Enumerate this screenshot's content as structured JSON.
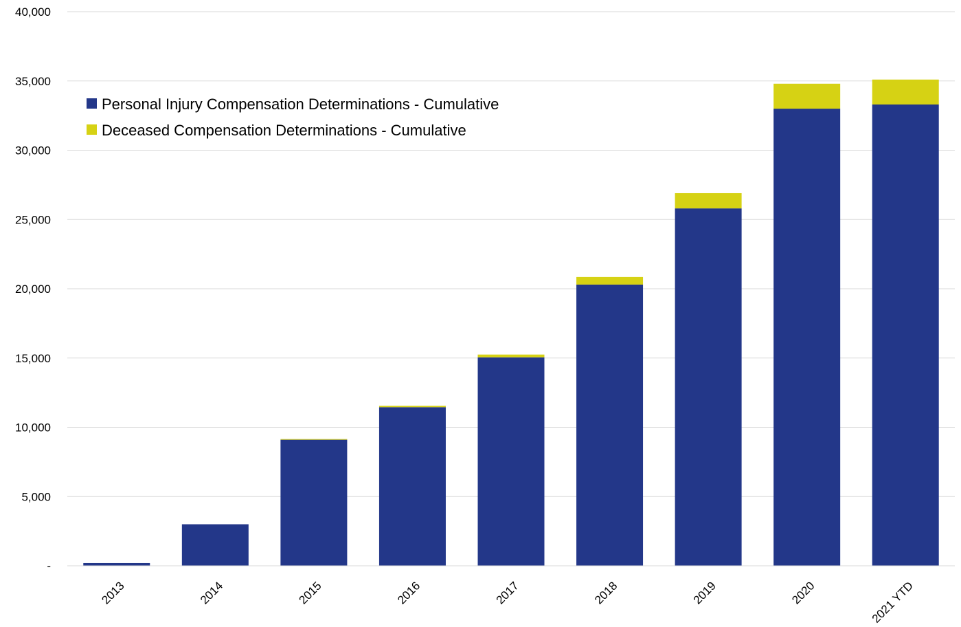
{
  "chart_data": {
    "type": "bar",
    "stacked": true,
    "title": "",
    "xlabel": "",
    "ylabel": "",
    "categories": [
      "2013",
      "2014",
      "2015",
      "2016",
      "2017",
      "2018",
      "2019",
      "2020",
      "2021 YTD"
    ],
    "series": [
      {
        "name": "Personal Injury Compensation Determinations - Cumulative",
        "color": "#233789",
        "values": [
          200,
          3000,
          9100,
          11450,
          15050,
          20300,
          25800,
          33000,
          33300
        ]
      },
      {
        "name": "Deceased Compensation Determinations - Cumulative",
        "color": "#d6d214",
        "values": [
          0,
          0,
          50,
          100,
          200,
          550,
          1100,
          1800,
          1800
        ]
      }
    ],
    "ylim": [
      0,
      40000
    ],
    "yticks": [
      0,
      5000,
      10000,
      15000,
      20000,
      25000,
      30000,
      35000,
      40000
    ],
    "ytick_labels": [
      "-",
      "5,000",
      "10,000",
      "15,000",
      "20,000",
      "25,000",
      "30,000",
      "35,000",
      "40,000"
    ],
    "grid": true,
    "legend_position": "top-left"
  }
}
